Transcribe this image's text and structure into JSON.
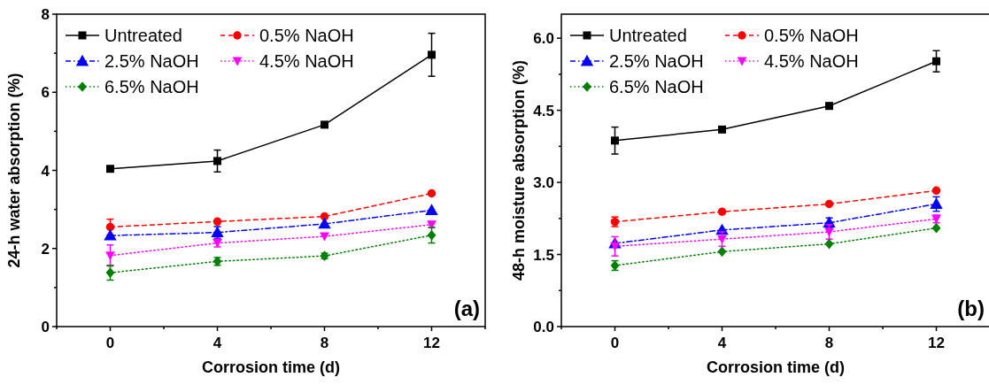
{
  "chart_data": [
    {
      "type": "line",
      "xlabel": "Corrosion time (d)",
      "ylabel": "24-h water absorption (%)",
      "annotations": [
        "(a)"
      ],
      "x": [
        0,
        4,
        8,
        12
      ],
      "xlim": [
        -2,
        14
      ],
      "xticks": [
        {
          "value": -2,
          "label": null
        },
        0,
        {
          "value": 2,
          "label": null
        },
        4,
        {
          "value": 6,
          "label": null
        },
        8,
        {
          "value": 10,
          "label": null
        },
        12,
        {
          "value": 14,
          "label": null
        }
      ],
      "ylim": [
        0,
        8
      ],
      "yticks": [
        0,
        {
          "value": 1,
          "label": null
        },
        2,
        {
          "value": 3,
          "label": null
        },
        4,
        {
          "value": 5,
          "label": null
        },
        6,
        {
          "value": 7,
          "label": null
        },
        8
      ],
      "legend": "top left",
      "grid": false,
      "series": [
        {
          "name": "Untreated",
          "color": "#000000",
          "marker": "square",
          "line_style": "solid",
          "values": [
            4.04,
            4.24,
            5.17,
            6.96
          ],
          "errors": [
            null,
            0.28,
            null,
            0.55
          ]
        },
        {
          "name": "0.5% NaOH",
          "color": "#ff0000",
          "marker": "circle",
          "line_style": "dashed",
          "values": [
            2.55,
            2.69,
            2.82,
            3.41
          ],
          "errors": [
            0.2,
            null,
            null,
            null
          ]
        },
        {
          "name": "2.5% NaOH",
          "color": "#0000ff",
          "marker": "triangle",
          "line_style": "dashdot",
          "values": [
            2.33,
            2.41,
            2.63,
            2.98
          ],
          "errors": [
            null,
            0.15,
            null,
            null
          ]
        },
        {
          "name": "4.5% NaOH",
          "color": "#ff00ff",
          "marker": "triangle-down",
          "line_style": "dotted",
          "values": [
            1.82,
            2.14,
            2.31,
            2.61
          ],
          "errors": [
            0.27,
            0.1,
            null,
            0.08
          ]
        },
        {
          "name": "6.5% NaOH",
          "color": "#008000",
          "marker": "diamond",
          "line_style": "dotted",
          "values": [
            1.38,
            1.67,
            1.81,
            2.34
          ],
          "errors": [
            0.19,
            0.1,
            0.07,
            0.2
          ]
        }
      ]
    },
    {
      "type": "line",
      "xlabel": "Corrosion time (d)",
      "ylabel": "48-h moisture absorption (%)",
      "annotations": [
        "(b)"
      ],
      "x": [
        0,
        4,
        8,
        12
      ],
      "xlim": [
        -2,
        14
      ],
      "xticks": [
        {
          "value": -2,
          "label": null
        },
        0,
        {
          "value": 2,
          "label": null
        },
        4,
        {
          "value": 6,
          "label": null
        },
        8,
        {
          "value": 10,
          "label": null
        },
        12,
        {
          "value": 14,
          "label": null
        }
      ],
      "ylim": [
        0,
        6.5
      ],
      "yticks": [
        {
          "value": 0,
          "label": "0.0"
        },
        {
          "value": 0.75,
          "label": null
        },
        1.5,
        {
          "value": 2.25,
          "label": null
        },
        {
          "value": 3,
          "label": "3.0"
        },
        {
          "value": 3.75,
          "label": null
        },
        4.5,
        {
          "value": 5.25,
          "label": null
        },
        {
          "value": 6,
          "label": "6.0"
        }
      ],
      "legend": "top left",
      "grid": false,
      "series": [
        {
          "name": "Untreated",
          "color": "#000000",
          "marker": "square",
          "line_style": "solid",
          "values": [
            3.87,
            4.1,
            4.59,
            5.52
          ],
          "errors": [
            0.28,
            null,
            0.06,
            0.22
          ]
        },
        {
          "name": "0.5% NaOH",
          "color": "#ff0000",
          "marker": "circle",
          "line_style": "dashed",
          "values": [
            2.18,
            2.39,
            2.55,
            2.83
          ],
          "errors": [
            0.1,
            null,
            null,
            null
          ]
        },
        {
          "name": "2.5% NaOH",
          "color": "#0000ff",
          "marker": "triangle",
          "line_style": "dashdot",
          "values": [
            1.73,
            2.01,
            2.16,
            2.55
          ],
          "errors": [
            null,
            null,
            0.1,
            0.15
          ]
        },
        {
          "name": "4.5% NaOH",
          "color": "#ff00ff",
          "marker": "triangle-down",
          "line_style": "dotted",
          "values": [
            1.67,
            1.82,
            1.97,
            2.24
          ],
          "errors": [
            0.2,
            0.15,
            0.15,
            0.08
          ]
        },
        {
          "name": "6.5% NaOH",
          "color": "#008000",
          "marker": "diamond",
          "line_style": "dotted",
          "values": [
            1.27,
            1.56,
            1.72,
            2.05
          ],
          "errors": [
            0.1,
            null,
            null,
            null
          ]
        }
      ]
    }
  ]
}
